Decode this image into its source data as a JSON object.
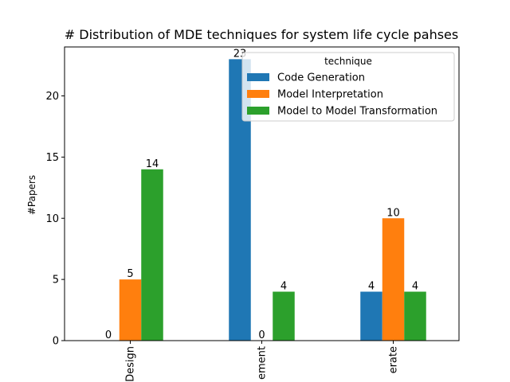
{
  "chart_data": {
    "type": "bar",
    "title": "# Distribution of MDE techniques for system life cycle pahses",
    "xlabel": "",
    "ylabel": "#Papers",
    "categories": [
      "Design",
      "Implement",
      "Operate"
    ],
    "visible_category_labels": [
      "Design",
      "ement",
      "erate"
    ],
    "series": [
      {
        "name": "Code Generation",
        "values": [
          0,
          23,
          4
        ],
        "color": "#1f77b4"
      },
      {
        "name": "Model Interpretation",
        "values": [
          5,
          0,
          10
        ],
        "color": "#ff7f0e"
      },
      {
        "name": "Model to Model Transformation",
        "values": [
          14,
          4,
          4
        ],
        "color": "#2ca02c"
      }
    ],
    "data_labels": [
      [
        "0",
        "5",
        "14"
      ],
      [
        "23",
        "0",
        "4"
      ],
      [
        "4",
        "10",
        "4"
      ]
    ],
    "ylim": [
      0,
      24
    ],
    "yticks": [
      0,
      5,
      10,
      15,
      20
    ],
    "grid": false,
    "legend": {
      "title": "technique",
      "placement": "top-right"
    }
  }
}
